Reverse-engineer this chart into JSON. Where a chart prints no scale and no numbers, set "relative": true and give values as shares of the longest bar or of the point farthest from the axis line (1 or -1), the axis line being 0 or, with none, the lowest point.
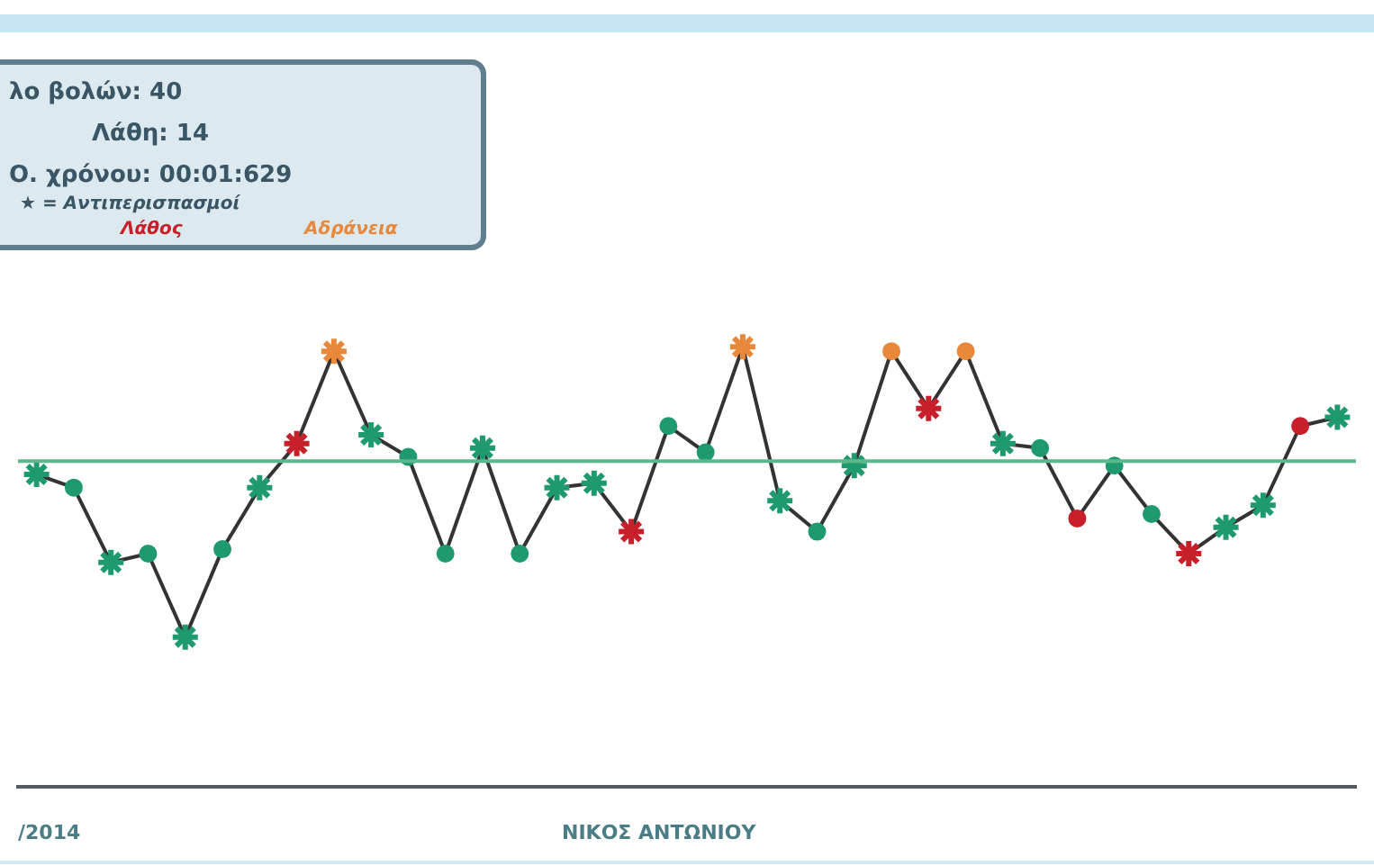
{
  "chart_data": {
    "type": "line",
    "relative": true,
    "categories": [
      null,
      null,
      null,
      null,
      null,
      null,
      null,
      null,
      null,
      null,
      null,
      null,
      null,
      null,
      null,
      null,
      null,
      null,
      null,
      null,
      null,
      null,
      null,
      null,
      null,
      null,
      null,
      null,
      null,
      null,
      null,
      null,
      null,
      null,
      null,
      null
    ],
    "series": [
      {
        "color": "#333333",
        "values": [
          0.71,
          0.68,
          0.51,
          0.53,
          0.34,
          0.54,
          0.68,
          0.78,
          0.99,
          0.8,
          0.75,
          0.53,
          0.77,
          0.53,
          0.68,
          0.69,
          0.58,
          0.82,
          0.76,
          1,
          0.65,
          0.58,
          0.73,
          0.99,
          0.86,
          0.99,
          0.78,
          0.77,
          0.61,
          0.73,
          0.62,
          0.53,
          0.59,
          0.64,
          0.82,
          0.84
        ],
        "colors": [
          "#1e9a6e",
          "#1e9a6e",
          "#1e9a6e",
          "#1e9a6e",
          "#1e9a6e",
          "#1e9a6e",
          "#1e9a6e",
          "#c8202a",
          "#e8883a",
          "#1e9a6e",
          "#1e9a6e",
          "#1e9a6e",
          "#1e9a6e",
          "#1e9a6e",
          "#1e9a6e",
          "#1e9a6e",
          "#c8202a",
          "#1e9a6e",
          "#1e9a6e",
          "#e8883a",
          "#1e9a6e",
          "#1e9a6e",
          "#1e9a6e",
          "#e8883a",
          "#c8202a",
          "#e8883a",
          "#1e9a6e",
          "#1e9a6e",
          "#c8202a",
          "#1e9a6e",
          "#1e9a6e",
          "#c8202a",
          "#1e9a6e",
          "#1e9a6e",
          "#c8202a",
          "#1e9a6e"
        ],
        "marker": [
          "star",
          "circle",
          "star",
          "circle",
          "star",
          "circle",
          "star",
          "star",
          "star",
          "star",
          "circle",
          "circle",
          "star",
          "circle",
          "star",
          "star",
          "star",
          "circle",
          "circle",
          "star",
          "star",
          "circle",
          "star",
          "circle",
          "star",
          "circle",
          "star",
          "circle",
          "circle",
          "circle",
          "circle",
          "star",
          "star",
          "star",
          "circle",
          "star"
        ]
      }
    ],
    "ref_lines": [
      {
        "axis": "y",
        "value": 0.74,
        "color": "#5cb88a"
      }
    ],
    "annotations": [
      "λο βολών: 40",
      "Λάθη: 14",
      "Ο. χρόνου: 00:01:629",
      "★ = Αντιπερισπασμοί",
      "Λάθος",
      "Αδράνεια",
      "/2014",
      "ΝΙΚΟΣ ΑΝΤΩΝΙΟΥ"
    ],
    "grid": false,
    "legend": false,
    "tick_labels": false
  }
}
